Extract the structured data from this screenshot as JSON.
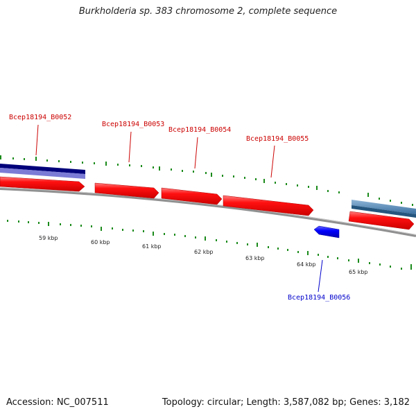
{
  "title": "Burkholderia sp. 383 chromosome 2, complete sequence",
  "footer": {
    "accession": "Accession: NC_007511",
    "summary": "Topology: circular; Length: 3,587,082 bp; Genes: 3,182"
  },
  "colors": {
    "forward_gene": "#ff0000",
    "reverse_gene": "#0000ff",
    "forward_label": "#cc0000",
    "reverse_label": "#0000cc",
    "feature_dark": "#000080",
    "feature_light": "#7777dd",
    "feature_steel": "#4682b4",
    "tick": "#008000",
    "backbone": "#888888"
  },
  "scale_labels": [
    "59 kbp",
    "60 kbp",
    "61 kbp",
    "62 kbp",
    "63 kbp",
    "64 kbp",
    "65 kbp"
  ],
  "gene_labels": [
    {
      "text": "Bcep18194_B0052",
      "strand": "forward"
    },
    {
      "text": "Bcep18194_B0053",
      "strand": "forward"
    },
    {
      "text": "Bcep18194_B0054",
      "strand": "forward"
    },
    {
      "text": "Bcep18194_B0055",
      "strand": "forward"
    },
    {
      "text": "Bcep18194_B0056",
      "strand": "reverse"
    }
  ]
}
